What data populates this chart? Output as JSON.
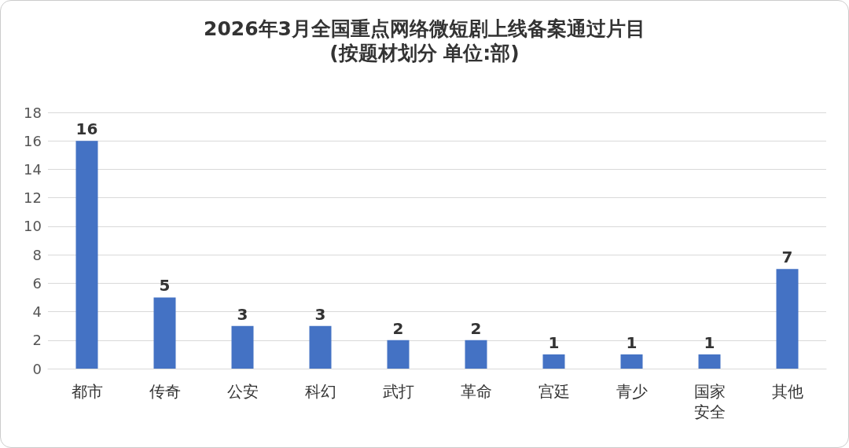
{
  "chart_data": {
    "type": "bar",
    "title": "2026年3月全国重点网络微短剧上线备案通过片目",
    "subtitle": "(按题材划分 单位:部)",
    "categories": [
      "都市",
      "传奇",
      "公安",
      "科幻",
      "武打",
      "革命",
      "宫廷",
      "青少",
      "国家安全",
      "其他"
    ],
    "values": [
      16,
      5,
      3,
      3,
      2,
      2,
      1,
      1,
      1,
      7
    ],
    "color": "#4472c4",
    "ylim": [
      0,
      18
    ],
    "yticks": [
      0,
      2,
      4,
      6,
      8,
      10,
      12,
      14,
      16,
      18
    ],
    "grid": "y",
    "data_labels": true
  }
}
